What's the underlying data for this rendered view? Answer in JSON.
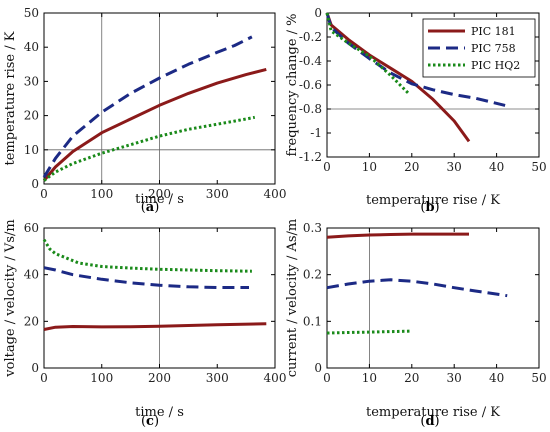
{
  "colors": {
    "pic181": "#8b1a1a",
    "pic758": "#1c2a85",
    "pichq2": "#1a8a1a",
    "ref": "#666666",
    "axis": "#000000"
  },
  "legend": {
    "items": [
      {
        "label": "PIC 181",
        "color": "#8b1a1a",
        "style": "solid"
      },
      {
        "label": "PIC 758",
        "color": "#1c2a85",
        "style": "dashed"
      },
      {
        "label": "PIC HQ2",
        "color": "#1a8a1a",
        "style": "dotted"
      }
    ]
  },
  "chart_data": [
    {
      "panel": "(a)",
      "type": "line",
      "xlabel": "time / s",
      "ylabel": "temperature rise / K",
      "xlim": [
        0,
        400
      ],
      "ylim": [
        0,
        50
      ],
      "xticks": [
        0,
        100,
        200,
        300,
        400
      ],
      "yticks": [
        0,
        10,
        20,
        30,
        40,
        50
      ],
      "reference_lines": {
        "vertical": [
          100,
          200
        ],
        "horizontal": [
          10
        ]
      },
      "series": [
        {
          "key": "pic181",
          "style": "solid",
          "points": [
            [
              0,
              1
            ],
            [
              20,
              5
            ],
            [
              50,
              9.5
            ],
            [
              100,
              15
            ],
            [
              150,
              19
            ],
            [
              200,
              23
            ],
            [
              250,
              26.5
            ],
            [
              300,
              29.5
            ],
            [
              350,
              32
            ],
            [
              385,
              33.5
            ]
          ]
        },
        {
          "key": "pic758",
          "style": "dashed",
          "points": [
            [
              0,
              2
            ],
            [
              20,
              7.5
            ],
            [
              50,
              14
            ],
            [
              100,
              21
            ],
            [
              150,
              26.5
            ],
            [
              200,
              31
            ],
            [
              250,
              35
            ],
            [
              300,
              38.5
            ],
            [
              330,
              40.5
            ],
            [
              360,
              43
            ]
          ]
        },
        {
          "key": "pichq2",
          "style": "dotted",
          "points": [
            [
              0,
              1
            ],
            [
              20,
              3.5
            ],
            [
              50,
              6
            ],
            [
              100,
              9
            ],
            [
              150,
              11.5
            ],
            [
              200,
              14
            ],
            [
              250,
              16
            ],
            [
              300,
              17.5
            ],
            [
              350,
              19
            ],
            [
              365,
              19.5
            ]
          ]
        }
      ]
    },
    {
      "panel": "(b)",
      "type": "line",
      "xlabel": "temperature rise / K",
      "ylabel": "frequency change / %",
      "xlim": [
        0,
        50
      ],
      "ylim": [
        -1.2,
        0
      ],
      "xticks": [
        0,
        10,
        20,
        30,
        40,
        50
      ],
      "yticks": [
        0,
        -0.2,
        -0.4,
        -0.6,
        -0.8,
        -1,
        -1.2
      ],
      "reference_lines": {
        "vertical": [],
        "horizontal": [
          -0.8
        ]
      },
      "series": [
        {
          "key": "pic181",
          "style": "solid",
          "points": [
            [
              0,
              0
            ],
            [
              1,
              -0.1
            ],
            [
              5,
              -0.22
            ],
            [
              10,
              -0.35
            ],
            [
              15,
              -0.46
            ],
            [
              20,
              -0.57
            ],
            [
              25,
              -0.72
            ],
            [
              30,
              -0.9
            ],
            [
              33.5,
              -1.07
            ]
          ]
        },
        {
          "key": "pic758",
          "style": "dashed",
          "points": [
            [
              0,
              0
            ],
            [
              1,
              -0.12
            ],
            [
              5,
              -0.25
            ],
            [
              10,
              -0.38
            ],
            [
              15,
              -0.5
            ],
            [
              20,
              -0.59
            ],
            [
              25,
              -0.64
            ],
            [
              30,
              -0.68
            ],
            [
              35,
              -0.71
            ],
            [
              42,
              -0.77
            ]
          ]
        },
        {
          "key": "pichq2",
          "style": "dotted",
          "points": [
            [
              0,
              0
            ],
            [
              1,
              -0.15
            ],
            [
              5,
              -0.25
            ],
            [
              10,
              -0.36
            ],
            [
              15,
              -0.52
            ],
            [
              19.5,
              -0.68
            ]
          ]
        }
      ]
    },
    {
      "panel": "(c)",
      "type": "line",
      "xlabel": "time / s",
      "ylabel": "voltage / velocity / Vs/m",
      "xlim": [
        0,
        400
      ],
      "ylim": [
        0,
        60
      ],
      "xticks": [
        0,
        100,
        200,
        300,
        400
      ],
      "yticks": [
        0,
        20,
        40,
        60
      ],
      "reference_lines": {
        "vertical": [
          200
        ],
        "horizontal": []
      },
      "series": [
        {
          "key": "pic181",
          "style": "solid",
          "points": [
            [
              0,
              16.5
            ],
            [
              20,
              17.5
            ],
            [
              50,
              17.8
            ],
            [
              100,
              17.6
            ],
            [
              150,
              17.7
            ],
            [
              200,
              17.9
            ],
            [
              250,
              18.2
            ],
            [
              300,
              18.5
            ],
            [
              385,
              19
            ]
          ]
        },
        {
          "key": "pic758",
          "style": "dashed",
          "points": [
            [
              0,
              43
            ],
            [
              20,
              42
            ],
            [
              50,
              40
            ],
            [
              100,
              38
            ],
            [
              150,
              36.5
            ],
            [
              200,
              35.5
            ],
            [
              250,
              34.8
            ],
            [
              300,
              34.5
            ],
            [
              355,
              34.5
            ]
          ]
        },
        {
          "key": "pichq2",
          "style": "dotted",
          "points": [
            [
              0,
              55
            ],
            [
              10,
              51
            ],
            [
              20,
              49
            ],
            [
              40,
              47
            ],
            [
              60,
              45
            ],
            [
              100,
              43.5
            ],
            [
              150,
              42.8
            ],
            [
              200,
              42.3
            ],
            [
              250,
              42
            ],
            [
              300,
              41.7
            ],
            [
              360,
              41.5
            ]
          ]
        }
      ]
    },
    {
      "panel": "(d)",
      "type": "line",
      "xlabel": "temperature rise / K",
      "ylabel": "current / velocity / As/m",
      "xlim": [
        0,
        50
      ],
      "ylim": [
        0,
        0.3
      ],
      "xticks": [
        0,
        10,
        20,
        30,
        40,
        50
      ],
      "yticks": [
        0,
        0.1,
        0.2,
        0.3
      ],
      "reference_lines": {
        "vertical": [
          10
        ],
        "horizontal": []
      },
      "series": [
        {
          "key": "pic181",
          "style": "solid",
          "points": [
            [
              0,
              0.28
            ],
            [
              5,
              0.283
            ],
            [
              10,
              0.285
            ],
            [
              15,
              0.286
            ],
            [
              20,
              0.287
            ],
            [
              25,
              0.287
            ],
            [
              30,
              0.287
            ],
            [
              33.5,
              0.287
            ]
          ]
        },
        {
          "key": "pic758",
          "style": "dashed",
          "points": [
            [
              0,
              0.172
            ],
            [
              5,
              0.18
            ],
            [
              10,
              0.186
            ],
            [
              15,
              0.189
            ],
            [
              20,
              0.186
            ],
            [
              25,
              0.18
            ],
            [
              30,
              0.172
            ],
            [
              35,
              0.165
            ],
            [
              42.5,
              0.155
            ]
          ]
        },
        {
          "key": "pichq2",
          "style": "dotted",
          "points": [
            [
              0,
              0.075
            ],
            [
              5,
              0.076
            ],
            [
              10,
              0.077
            ],
            [
              15,
              0.078
            ],
            [
              20,
              0.079
            ]
          ]
        }
      ]
    }
  ]
}
